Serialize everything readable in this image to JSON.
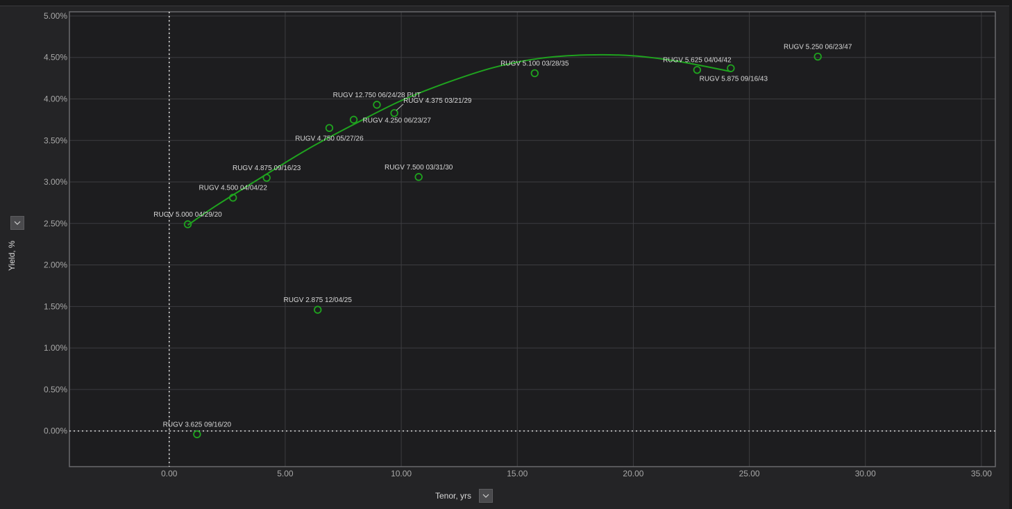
{
  "axes": {
    "y_label": "Yield, %",
    "x_label": "Tenor, yrs"
  },
  "icons": {
    "axis_dropdown": "chevron-down-icon"
  },
  "colors": {
    "background": "#1d1d1f",
    "grid": "#3d3d40",
    "series": "#1fa31f",
    "text": "#d8d8d8",
    "tick_text": "#a8a8a8"
  },
  "chart_data": {
    "type": "scatter",
    "title": "",
    "xlabel": "Tenor, yrs",
    "ylabel": "Yield, %",
    "xlim": [
      -4.3,
      35.6
    ],
    "ylim": [
      -0.43,
      5.05
    ],
    "x_ticks": [
      0,
      5,
      10,
      15,
      20,
      25,
      30,
      35
    ],
    "x_tick_labels": [
      "0.00",
      "5.00",
      "10.00",
      "15.00",
      "20.00",
      "25.00",
      "30.00",
      "35.00"
    ],
    "y_ticks": [
      0,
      0.5,
      1.0,
      1.5,
      2.0,
      2.5,
      3.0,
      3.5,
      4.0,
      4.5,
      5.0
    ],
    "y_tick_labels": [
      "0.00%",
      "0.50%",
      "1.00%",
      "1.50%",
      "2.00%",
      "2.50%",
      "3.00%",
      "3.50%",
      "4.00%",
      "4.50%",
      "5.00%"
    ],
    "grid": true,
    "reference_lines": {
      "x": 0,
      "y": 0
    },
    "points": [
      {
        "label": "RUGV 5.000 04/29/20",
        "x": 0.8,
        "y": 2.49,
        "pos": "above"
      },
      {
        "label": "RUGV 3.625 09/16/20",
        "x": 1.2,
        "y": -0.04,
        "pos": "above"
      },
      {
        "label": "RUGV 4.500 04/04/22",
        "x": 2.75,
        "y": 2.81,
        "pos": "above"
      },
      {
        "label": "RUGV 4.875 09/16/23",
        "x": 4.2,
        "y": 3.05,
        "pos": "above"
      },
      {
        "label": "RUGV 2.875 12/04/25",
        "x": 6.4,
        "y": 1.46,
        "pos": "above"
      },
      {
        "label": "RUGV 4.750 05/27/26",
        "x": 6.9,
        "y": 3.65,
        "pos": "below-left"
      },
      {
        "label": "RUGV 4.250 06/23/27",
        "x": 7.95,
        "y": 3.75,
        "pos": "right"
      },
      {
        "label": "RUGV 12.750 06/24/28 PUT",
        "x": 8.95,
        "y": 3.93,
        "pos": "above"
      },
      {
        "label": "RUGV 4.375 03/21/29",
        "x": 9.7,
        "y": 3.83,
        "pos": "leader"
      },
      {
        "label": "RUGV 7.500 03/31/30",
        "x": 10.75,
        "y": 3.06,
        "pos": "above"
      },
      {
        "label": "RUGV 5.100 03/28/35",
        "x": 15.75,
        "y": 4.31,
        "pos": "above"
      },
      {
        "label": "RUGV 5.625 04/04/42",
        "x": 22.75,
        "y": 4.35,
        "pos": "above"
      },
      {
        "label": "RUGV 5.875 09/16/43",
        "x": 24.2,
        "y": 4.37,
        "pos": "below-right"
      },
      {
        "label": "RUGV 5.250 06/23/47",
        "x": 27.95,
        "y": 4.51,
        "pos": "above"
      }
    ],
    "fit_curve": {
      "type": "line",
      "x": [
        0.8,
        2,
        4,
        6,
        8,
        10,
        12,
        14,
        16,
        18,
        20,
        22,
        24.2
      ],
      "y": [
        2.48,
        2.71,
        3.06,
        3.4,
        3.7,
        3.98,
        4.2,
        4.38,
        4.49,
        4.53,
        4.52,
        4.45,
        4.33
      ]
    }
  }
}
